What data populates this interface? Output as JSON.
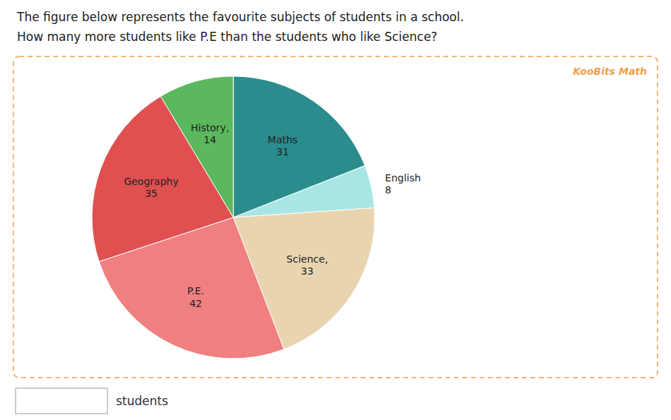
{
  "chart_data": {
    "type": "pie",
    "title": "The figure below represents the favourite subjects of students in a school.",
    "subtitle": "How many more students like P.E than the students who like Science?",
    "categories": [
      "Maths",
      "English",
      "Science,",
      "P.E.",
      "Geography",
      "History,"
    ],
    "values": [
      31,
      8,
      33,
      42,
      35,
      14
    ],
    "colors": [
      "#2a8c8c",
      "#a8e6e6",
      "#e8d5b0",
      "#f08080",
      "#e05050",
      "#5cb85c"
    ],
    "data_labels": true,
    "annotations": [
      "KooBits Math",
      "students"
    ]
  }
}
